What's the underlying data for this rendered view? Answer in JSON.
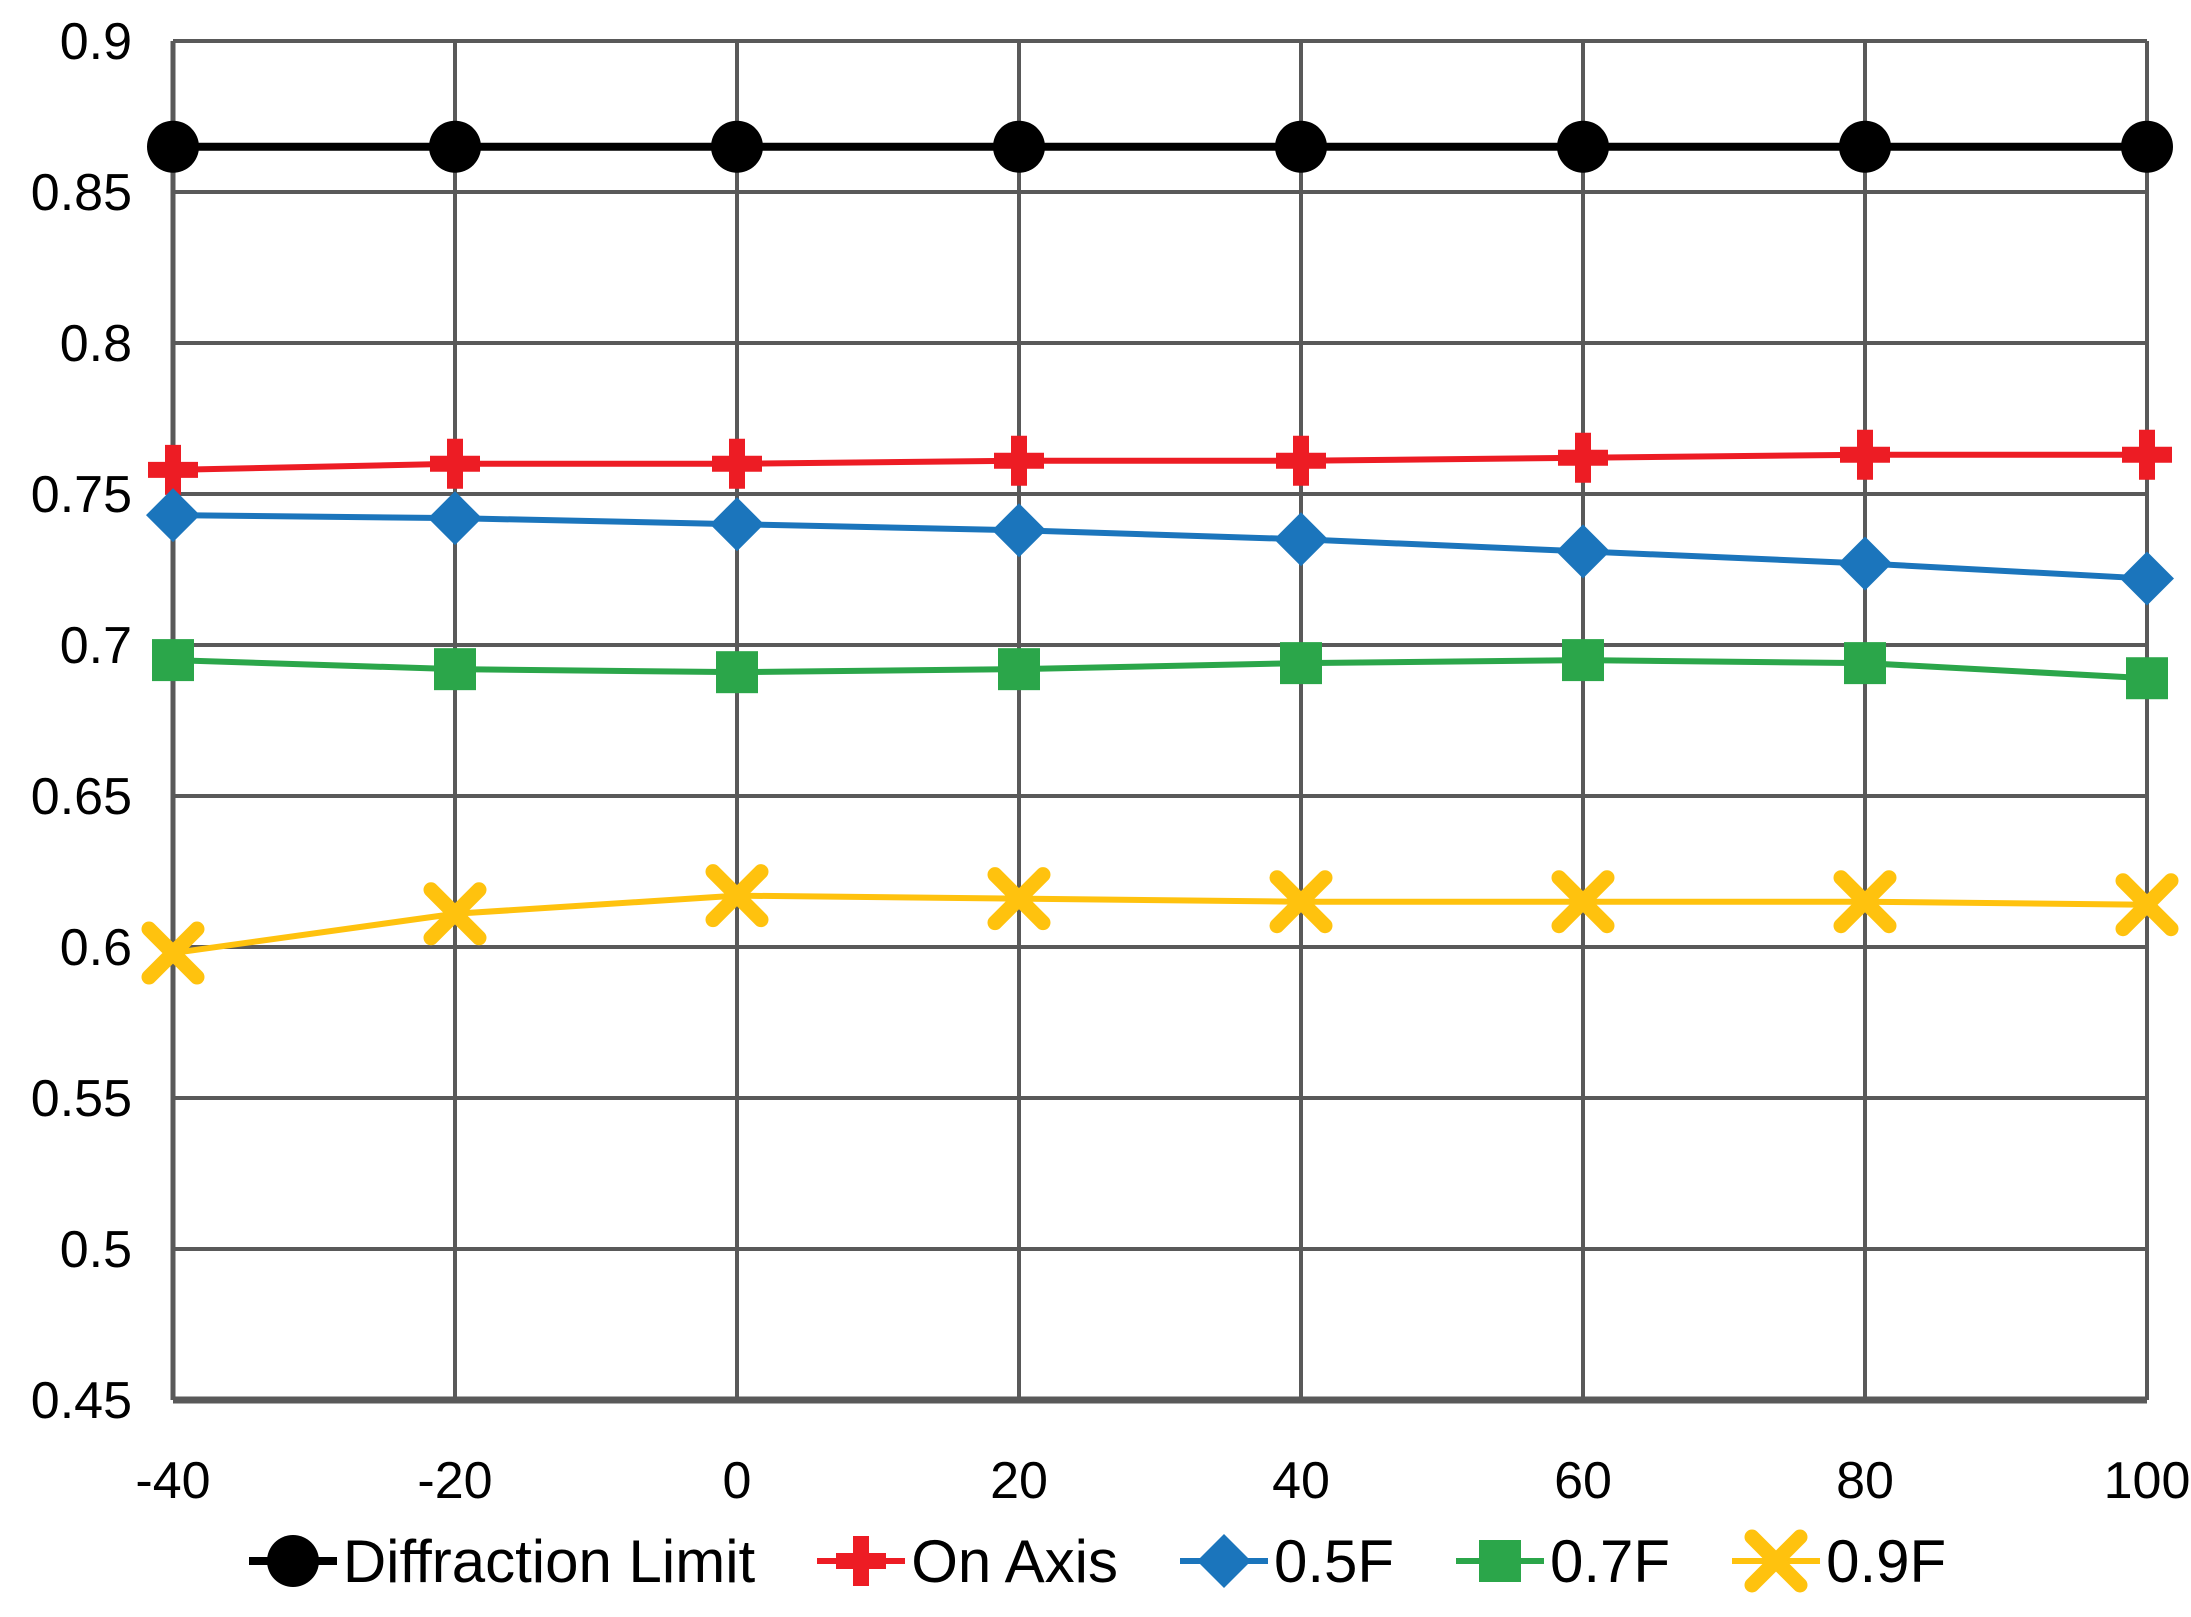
{
  "chart_data": {
    "type": "line",
    "title": "",
    "xlabel": "",
    "ylabel": "",
    "grid": true,
    "legend_position": "bottom",
    "xlim": [
      -40,
      100
    ],
    "ylim": [
      0.45,
      0.9
    ],
    "x": [
      -40,
      -20,
      0,
      20,
      40,
      60,
      80,
      100
    ],
    "x_tick_labels": [
      "-40",
      "-20",
      "0",
      "20",
      "40",
      "60",
      "80",
      "100"
    ],
    "y_ticks": [
      0.45,
      0.5,
      0.55,
      0.6,
      0.65,
      0.7,
      0.75,
      0.8,
      0.85,
      0.9
    ],
    "y_tick_labels": [
      "0.45",
      "0.5",
      "0.55",
      "0.6",
      "0.65",
      "0.7",
      "0.75",
      "0.8",
      "0.85",
      "0.9"
    ],
    "series": [
      {
        "name": "Diffraction Limit",
        "marker": "circle",
        "color": "#000000",
        "line_width": 8,
        "values": [
          0.865,
          0.865,
          0.865,
          0.865,
          0.865,
          0.865,
          0.865,
          0.865
        ]
      },
      {
        "name": "On Axis",
        "marker": "plus",
        "color": "#ED1C24",
        "line_width": 6,
        "values": [
          0.758,
          0.76,
          0.76,
          0.761,
          0.761,
          0.762,
          0.763,
          0.763
        ]
      },
      {
        "name": "0.5F",
        "marker": "diamond",
        "color": "#1B75BC",
        "line_width": 6,
        "values": [
          0.743,
          0.742,
          0.74,
          0.738,
          0.735,
          0.731,
          0.727,
          0.722
        ]
      },
      {
        "name": "0.7F",
        "marker": "square",
        "color": "#2BA64A",
        "line_width": 6,
        "values": [
          0.695,
          0.692,
          0.691,
          0.692,
          0.694,
          0.695,
          0.694,
          0.689
        ]
      },
      {
        "name": "0.9F",
        "marker": "x",
        "color": "#FFC20E",
        "line_width": 6,
        "values": [
          0.598,
          0.611,
          0.617,
          0.616,
          0.615,
          0.615,
          0.615,
          0.614
        ]
      }
    ]
  },
  "style": {
    "gridline_color": "#595959",
    "axis_color": "#595959",
    "background_color": "#FFFFFF",
    "text_color": "#000000"
  }
}
